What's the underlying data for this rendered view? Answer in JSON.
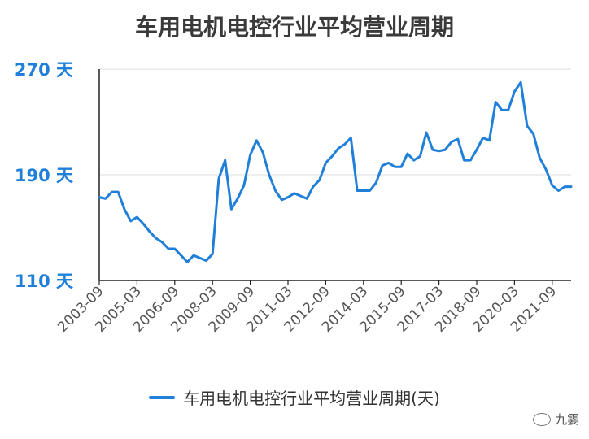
{
  "chart_data": {
    "type": "line",
    "title": "车用电机电控行业平均营业周期",
    "unit": "天",
    "ylim": [
      110,
      270
    ],
    "y_ticks": [
      "110 天",
      "190 天",
      "270 天"
    ],
    "x_tick_labels": [
      "2003-09",
      "2005-03",
      "2006-09",
      "2008-03",
      "2009-09",
      "2011-03",
      "2012-09",
      "2014-03",
      "2015-09",
      "2017-03",
      "2018-09",
      "2020-03",
      "2021-09"
    ],
    "grid": "horizontal",
    "legend_position": "bottom-center",
    "series": [
      {
        "name": "车用电机电控行业平均营业周期(天)",
        "color": "#1f7fd9",
        "values": [
          173,
          172,
          177,
          177,
          164,
          155,
          158,
          153,
          147,
          142,
          139,
          134,
          134,
          129,
          124,
          129,
          127,
          125,
          130,
          187,
          201,
          164,
          172,
          182,
          205,
          216,
          207,
          190,
          178,
          171,
          173,
          176,
          174,
          172,
          181,
          186,
          199,
          204,
          210,
          213,
          218,
          178,
          178,
          178,
          184,
          197,
          199,
          196,
          196,
          206,
          201,
          204,
          222,
          209,
          208,
          209,
          215,
          217,
          201,
          201,
          209,
          218,
          216,
          245,
          239,
          239,
          253,
          260,
          227,
          221,
          203,
          194,
          182,
          178,
          181,
          181
        ]
      }
    ]
  },
  "legend": {
    "label": "车用电机电控行业平均营业周期(天)"
  },
  "watermark": {
    "text": "九霎"
  }
}
